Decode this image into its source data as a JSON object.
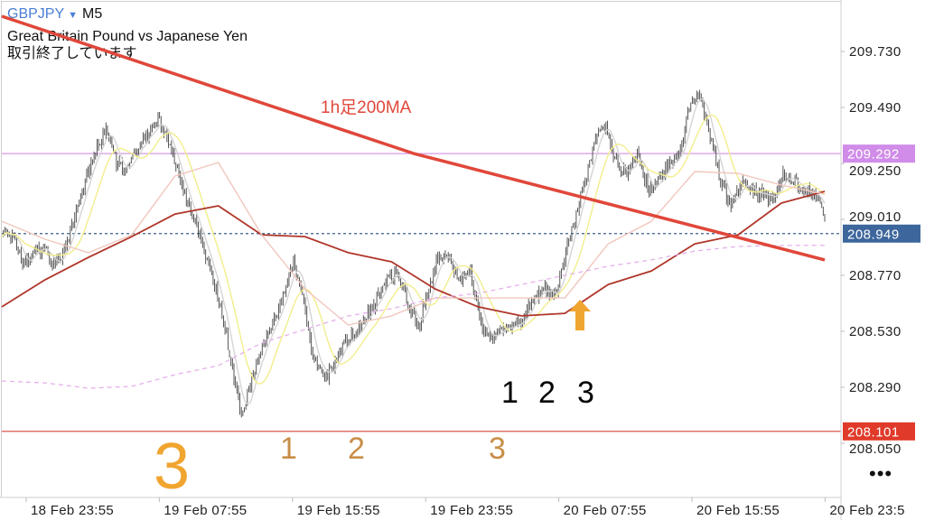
{
  "header": {
    "symbol": "GBPJPY",
    "dropdown_icon": "triangle-down-icon",
    "timeframe": "M5",
    "description": "Great Britain Pound vs Japanese Yen",
    "status": "取引終了しています"
  },
  "more_button": "•••",
  "colors": {
    "symbol": "#4a7fd4",
    "bars": "#444444",
    "ma_fast": "#f2ee8c",
    "ma_grey": "#d4d4d4",
    "ma_pink": "#f1c6bd",
    "ma_darkred": "#b0362a",
    "ma_dashed": "#e4b2ea",
    "ma_1h200": "#e0473a",
    "resistance_line": "#d79ae8",
    "support_line": "#d8463a",
    "current_line": "#3b5f8c",
    "annotation_orange": "#f0a530",
    "annotation_brown": "#c98e48"
  },
  "chart_data": {
    "type": "candlestick",
    "title": "",
    "xlabel": "",
    "ylabel": "",
    "ylim": [
      207.89,
      209.93
    ],
    "grid": false,
    "y_ticks": [
      "209.730",
      "209.490",
      "209.250",
      "209.010",
      "208.770",
      "208.530",
      "208.290",
      "208.050"
    ],
    "x_ticks": [
      "18 Feb 23:55",
      "19 Feb 07:55",
      "19 Feb 15:55",
      "19 Feb 23:55",
      "20 Feb 07:55",
      "20 Feb 15:55",
      "20 Feb 23:5"
    ],
    "x_start": "18 Feb 22:20",
    "x_end": "20 Feb 23:50",
    "approx_closes": [
      208.964,
      208.944,
      208.828,
      208.867,
      208.886,
      208.809,
      208.867,
      209.022,
      209.176,
      209.293,
      209.409,
      209.254,
      209.215,
      209.312,
      209.37,
      209.447,
      209.331,
      209.215,
      209.06,
      208.944,
      208.789,
      208.635,
      208.402,
      208.17,
      208.325,
      208.48,
      208.557,
      208.673,
      208.828,
      208.635,
      208.402,
      208.325,
      208.402,
      208.48,
      208.518,
      208.596,
      208.673,
      208.751,
      208.789,
      208.635,
      208.557,
      208.712,
      208.867,
      208.828,
      208.751,
      208.789,
      208.557,
      208.499,
      208.557,
      208.538,
      208.576,
      208.673,
      208.712,
      208.673,
      208.828,
      209.022,
      209.176,
      209.37,
      209.409,
      209.254,
      209.215,
      209.293,
      209.138,
      209.176,
      209.254,
      209.273,
      209.486,
      209.563,
      209.37,
      209.176,
      209.06,
      209.176,
      209.138,
      209.118,
      209.099,
      209.196,
      209.176,
      209.138,
      209.118,
      209.022
    ],
    "moving_averages": [
      {
        "id": "ma_darkred",
        "values": [
          208.635,
          208.751,
          208.847,
          208.936,
          209.033,
          209.068,
          208.944,
          208.936,
          208.867,
          208.828,
          208.712,
          208.635,
          208.596,
          208.607,
          208.731,
          208.789,
          208.905,
          208.944,
          209.08,
          209.13
        ]
      },
      {
        "id": "ma_pink",
        "values": [
          209.002,
          208.925,
          208.867,
          208.944,
          209.196,
          209.254,
          208.944,
          208.712,
          208.557,
          208.596,
          208.673,
          208.673,
          208.673,
          208.673,
          208.905,
          209.002,
          209.215,
          209.207,
          209.157,
          209.118
        ]
      },
      {
        "id": "ma_dashed",
        "values": [
          208.317,
          208.309,
          208.286,
          208.294,
          208.344,
          208.383,
          208.48,
          208.538,
          208.596,
          208.627,
          208.673,
          208.693,
          208.731,
          208.77,
          208.809,
          208.836,
          208.874,
          208.894,
          208.898,
          208.898
        ]
      },
      {
        "id": "ma_1h200",
        "label": "1h足200MA",
        "values": [
          209.881,
          209.293,
          208.836
        ]
      }
    ],
    "horizontal_lines": [
      {
        "id": "resistance",
        "price": "209.292"
      },
      {
        "id": "current",
        "price": "208.949"
      },
      {
        "id": "support",
        "price": "208.101"
      }
    ],
    "annotations": {
      "ma_label": "1h足200MA",
      "big_three": "3",
      "wave_labels": [
        "1",
        "2",
        "3"
      ],
      "entry_labels": [
        "1",
        "2",
        "3"
      ],
      "arrow_icon": "up-arrow-icon"
    }
  }
}
